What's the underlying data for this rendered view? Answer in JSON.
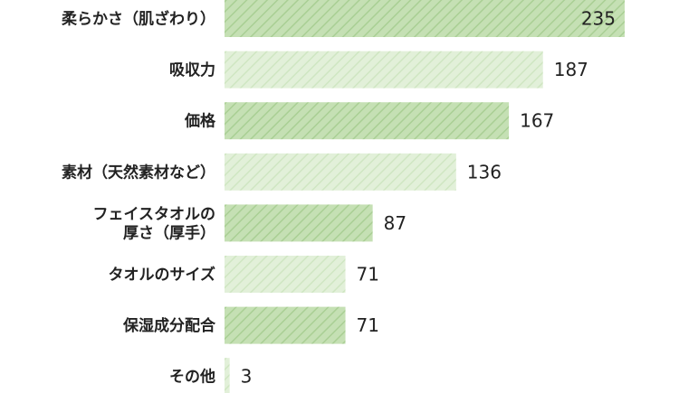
{
  "chart_data": {
    "type": "bar",
    "orientation": "horizontal",
    "categories": [
      "柔らかさ（肌ざわり）",
      "吸収力",
      "価格",
      "素材（天然素材など）",
      "フェイスタオルの\n厚さ（厚手）",
      "タオルのサイズ",
      "保湿成分配合",
      "その他"
    ],
    "values": [
      235,
      187,
      167,
      136,
      87,
      71,
      71,
      3
    ],
    "title": "",
    "xlabel": "",
    "ylabel": "",
    "xlim": [
      0,
      235
    ],
    "grid": false,
    "legend": "none",
    "colors": {
      "dark_fill": "#c5e0b4",
      "dark_stripe": "#a9cf94",
      "light_fill": "#e2f0d9",
      "light_stripe": "#cfe6c2"
    }
  }
}
